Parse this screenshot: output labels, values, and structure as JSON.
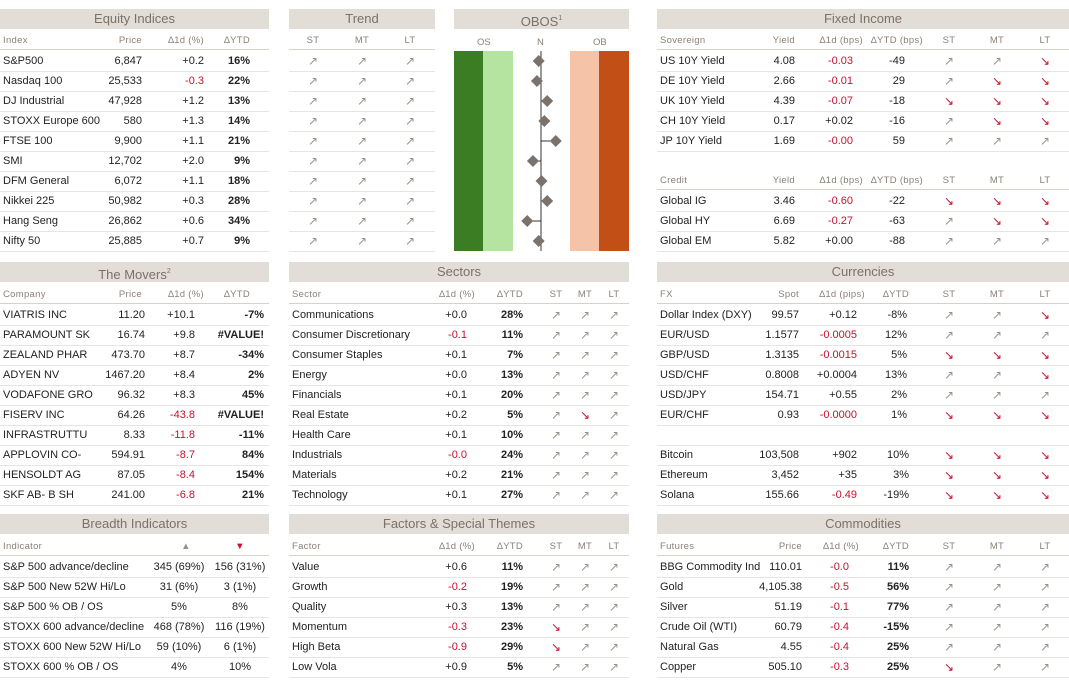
{
  "equity": {
    "title": "Equity Indices",
    "cols": [
      "Index",
      "Price",
      "∆1d (%)",
      "∆YTD"
    ],
    "rows": [
      [
        "S&P500",
        "6,847",
        "+0.2",
        "16%"
      ],
      [
        "Nasdaq 100",
        "25,533",
        "-0.3",
        "22%"
      ],
      [
        "DJ Industrial",
        "47,928",
        "+1.2",
        "13%"
      ],
      [
        "STOXX Europe 600",
        "580",
        "+1.3",
        "14%"
      ],
      [
        "FTSE 100",
        "9,900",
        "+1.1",
        "21%"
      ],
      [
        "SMI",
        "12,702",
        "+2.0",
        "9%"
      ],
      [
        "DFM General",
        "6,072",
        "+1.1",
        "18%"
      ],
      [
        "Nikkei 225",
        "50,982",
        "+0.3",
        "28%"
      ],
      [
        "Hang Seng",
        "26,862",
        "+0.6",
        "34%"
      ],
      [
        "Nifty 50",
        "25,885",
        "+0.7",
        "9%"
      ]
    ]
  },
  "trend": {
    "title": "Trend",
    "cols": [
      "ST",
      "MT",
      "LT"
    ],
    "rows": 10
  },
  "obos": {
    "title": "OBOS",
    "sup": "1",
    "labels": [
      "OS",
      "N",
      "OB"
    ],
    "positions": [
      0.45,
      0.42,
      0.6,
      0.55,
      0.75,
      0.35,
      0.5,
      0.6,
      0.25,
      0.45
    ]
  },
  "fixed": {
    "title": "Fixed Income",
    "cols1": [
      "Sovereign",
      "Yield",
      "∆1d (bps)",
      "∆YTD (bps)",
      "ST",
      "MT",
      "LT"
    ],
    "sov": [
      [
        "US 10Y Yield",
        "4.08",
        "-0.03",
        "-49",
        [
          "up",
          "up",
          "down"
        ]
      ],
      [
        "DE 10Y Yield",
        "2.66",
        "-0.01",
        "29",
        [
          "up",
          "down",
          "down"
        ]
      ],
      [
        "UK 10Y Yield",
        "4.39",
        "-0.07",
        "-18",
        [
          "down",
          "down",
          "down"
        ]
      ],
      [
        "CH 10Y Yield",
        "0.17",
        "+0.02",
        "-16",
        [
          "up",
          "down",
          "down"
        ]
      ],
      [
        "JP 10Y Yield",
        "1.69",
        "-0.00",
        "59",
        [
          "up",
          "up",
          "up"
        ]
      ]
    ],
    "cols2": [
      "Credit",
      "Yield",
      "∆1d (bps)",
      "∆YTD (bps)",
      "ST",
      "MT",
      "LT"
    ],
    "credit": [
      [
        "Global IG",
        "3.46",
        "-0.60",
        "-22",
        [
          "down",
          "down",
          "down"
        ]
      ],
      [
        "Global HY",
        "6.69",
        "-0.27",
        "-63",
        [
          "up",
          "down",
          "down"
        ]
      ],
      [
        "Global EM",
        "5.82",
        "+0.00",
        "-88",
        [
          "up",
          "up",
          "up"
        ]
      ]
    ]
  },
  "movers": {
    "title": "The Movers",
    "sup": "2",
    "cols": [
      "Company",
      "Price",
      "∆1d (%)",
      "∆YTD"
    ],
    "rows": [
      [
        "VIATRIS INC",
        "11.20",
        "+10.1",
        "-7%"
      ],
      [
        "PARAMOUNT SK",
        "16.74",
        "+9.8",
        "#VALUE!"
      ],
      [
        "ZEALAND PHAR",
        "473.70",
        "+8.7",
        "-34%"
      ],
      [
        "ADYEN NV",
        "1467.20",
        "+8.4",
        "2%"
      ],
      [
        "VODAFONE GRO",
        "96.32",
        "+8.3",
        "45%"
      ],
      [
        "FISERV INC",
        "64.26",
        "-43.8",
        "#VALUE!"
      ],
      [
        "INFRASTRUTTU",
        "8.33",
        "-11.8",
        "-11%"
      ],
      [
        "APPLOVIN CO-",
        "594.91",
        "-8.7",
        "84%"
      ],
      [
        "HENSOLDT AG",
        "87.05",
        "-8.4",
        "154%"
      ],
      [
        "SKF AB- B SH",
        "241.00",
        "-6.8",
        "21%"
      ]
    ]
  },
  "sectors": {
    "title": "Sectors",
    "cols": [
      "Sector",
      "∆1d (%)",
      "∆YTD",
      "ST",
      "MT",
      "LT"
    ],
    "rows": [
      [
        "Communications",
        "+0.0",
        "28%",
        [
          "up",
          "up",
          "up"
        ]
      ],
      [
        "Consumer Discretionary",
        "-0.1",
        "11%",
        [
          "up",
          "up",
          "up"
        ]
      ],
      [
        "Consumer Staples",
        "+0.1",
        "7%",
        [
          "up",
          "up",
          "up"
        ]
      ],
      [
        "Energy",
        "+0.0",
        "13%",
        [
          "up",
          "up",
          "up"
        ]
      ],
      [
        "Financials",
        "+0.1",
        "20%",
        [
          "up",
          "up",
          "up"
        ]
      ],
      [
        "Real Estate",
        "+0.2",
        "5%",
        [
          "up",
          "down",
          "up"
        ]
      ],
      [
        "Health Care",
        "+0.1",
        "10%",
        [
          "up",
          "up",
          "up"
        ]
      ],
      [
        "Industrials",
        "-0.0",
        "24%",
        [
          "up",
          "up",
          "up"
        ]
      ],
      [
        "Materials",
        "+0.2",
        "21%",
        [
          "up",
          "up",
          "up"
        ]
      ],
      [
        "Technology",
        "+0.1",
        "27%",
        [
          "up",
          "up",
          "up"
        ]
      ]
    ]
  },
  "currencies": {
    "title": "Currencies",
    "cols": [
      "FX",
      "Spot",
      "∆1d (pips)",
      "∆YTD",
      "ST",
      "MT",
      "LT"
    ],
    "rows": [
      [
        "Dollar Index (DXY)",
        "99.57",
        "+0.12",
        "-8%",
        [
          "up",
          "up",
          "down"
        ]
      ],
      [
        "EUR/USD",
        "1.1577",
        "-0.0005",
        "12%",
        [
          "up",
          "up",
          "up"
        ]
      ],
      [
        "GBP/USD",
        "1.3135",
        "-0.0015",
        "5%",
        [
          "down",
          "down",
          "down"
        ]
      ],
      [
        "USD/CHF",
        "0.8008",
        "+0.0004",
        "13%",
        [
          "up",
          "up",
          "down"
        ]
      ],
      [
        "USD/JPY",
        "154.71",
        "+0.55",
        "2%",
        [
          "up",
          "up",
          "up"
        ]
      ],
      [
        "EUR/CHF",
        "0.93",
        "-0.0000",
        "1%",
        [
          "down",
          "down",
          "down"
        ]
      ]
    ],
    "crypto": [
      [
        "Bitcoin",
        "103,508",
        "+902",
        "10%",
        [
          "down",
          "down",
          "down"
        ]
      ],
      [
        "Ethereum",
        "3,452",
        "+35",
        "3%",
        [
          "down",
          "down",
          "down"
        ]
      ],
      [
        "Solana",
        "155.66",
        "-0.49",
        "-19%",
        [
          "down",
          "down",
          "down"
        ]
      ]
    ]
  },
  "breadth": {
    "title": "Breadth Indicators",
    "cols": [
      "Indicator",
      "▲",
      "▼"
    ],
    "rows": [
      [
        "S&P 500 advance/decline",
        "345 (69%)",
        "156 (31%)"
      ],
      [
        "S&P 500 New 52W Hi/Lo",
        "31 (6%)",
        "3 (1%)"
      ],
      [
        "S&P 500 % OB / OS",
        "5%",
        "8%"
      ],
      [
        "STOXX 600 advance/decline",
        "468 (78%)",
        "116 (19%)"
      ],
      [
        "STOXX 600 New 52W Hi/Lo",
        "59 (10%)",
        "6 (1%)"
      ],
      [
        "STOXX 600 % OB / OS",
        "4%",
        "10%"
      ]
    ]
  },
  "factors": {
    "title": "Factors & Special Themes",
    "cols": [
      "Factor",
      "∆1d (%)",
      "∆YTD",
      "ST",
      "MT",
      "LT"
    ],
    "rows": [
      [
        "Value",
        "+0.6",
        "11%",
        [
          "up",
          "up",
          "up"
        ]
      ],
      [
        "Growth",
        "-0.2",
        "19%",
        [
          "up",
          "up",
          "up"
        ]
      ],
      [
        "Quality",
        "+0.3",
        "13%",
        [
          "up",
          "up",
          "up"
        ]
      ],
      [
        "Momentum",
        "-0.3",
        "23%",
        [
          "down",
          "up",
          "up"
        ]
      ],
      [
        "High Beta",
        "-0.9",
        "29%",
        [
          "down",
          "up",
          "up"
        ]
      ],
      [
        "Low Vola",
        "+0.9",
        "5%",
        [
          "up",
          "up",
          "up"
        ]
      ]
    ]
  },
  "commodities": {
    "title": "Commodities",
    "cols": [
      "Futures",
      "Price",
      "∆1d (%)",
      "∆YTD",
      "ST",
      "MT",
      "LT"
    ],
    "rows": [
      [
        "BBG Commodity Ind",
        "110.01",
        "-0.0",
        "11%",
        [
          "up",
          "up",
          "up"
        ]
      ],
      [
        "Gold",
        "4,105.38",
        "-0.5",
        "56%",
        [
          "up",
          "up",
          "up"
        ]
      ],
      [
        "Silver",
        "51.19",
        "-0.1",
        "77%",
        [
          "up",
          "up",
          "up"
        ]
      ],
      [
        "Crude Oil (WTI)",
        "60.79",
        "-0.4",
        "-15%",
        [
          "up",
          "up",
          "up"
        ]
      ],
      [
        "Natural Gas",
        "4.55",
        "-0.4",
        "25%",
        [
          "up",
          "up",
          "up"
        ]
      ],
      [
        "Copper",
        "505.10",
        "-0.3",
        "25%",
        [
          "down",
          "up",
          "up"
        ]
      ]
    ]
  }
}
